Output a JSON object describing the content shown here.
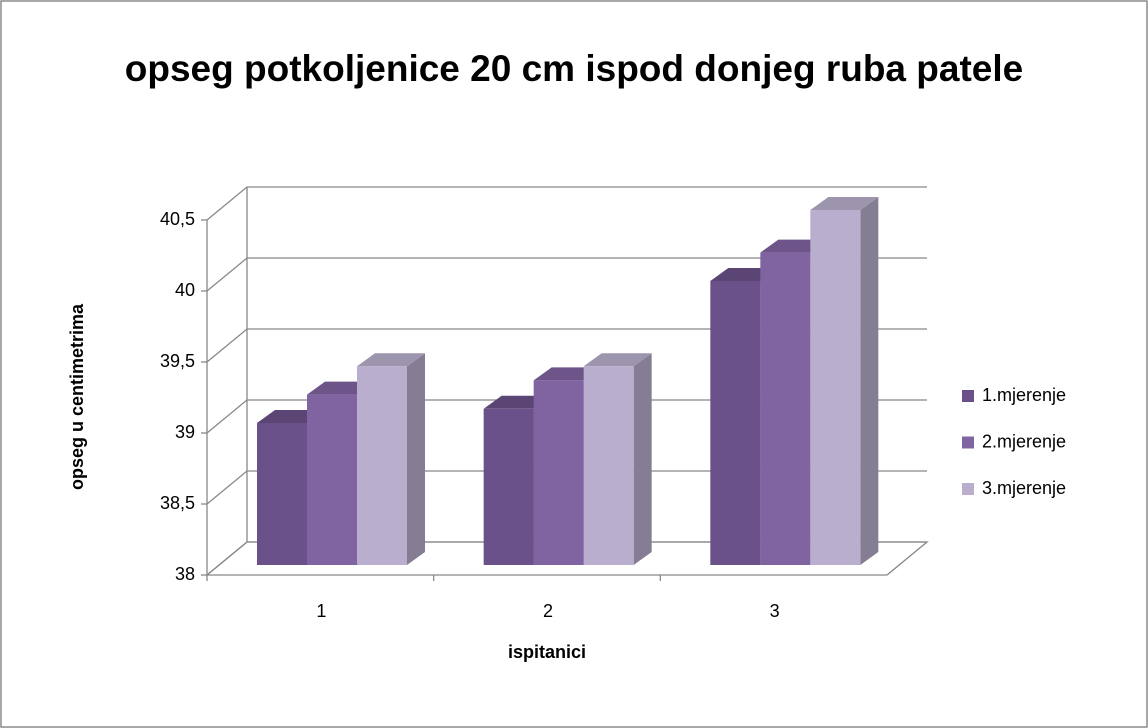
{
  "chart_data": {
    "type": "bar3d",
    "title": "opseg potkoljenice 20 cm ispod donjeg ruba patele",
    "x_label": "ispitanici",
    "y_label": "opseg u centimetrima",
    "categories": [
      "1",
      "2",
      "3"
    ],
    "series": [
      {
        "name": "1.mjerenje",
        "color": "#6a5189",
        "values": [
          39,
          39.1,
          40
        ]
      },
      {
        "name": "2.mjerenje",
        "color": "#8064a2",
        "values": [
          39.2,
          39.3,
          40.2
        ]
      },
      {
        "name": "3.mjerenje",
        "color": "#b9aecd",
        "values": [
          39.4,
          39.4,
          40.5
        ]
      }
    ],
    "ylim": [
      38,
      40.5
    ],
    "yticks": [
      38,
      {
        "value": 38.5,
        "label": "38,5"
      },
      39,
      {
        "value": 39.5,
        "label": "39,5"
      },
      40,
      {
        "value": 40.5,
        "label": "40,5"
      }
    ],
    "grid": true,
    "legend": "right"
  }
}
